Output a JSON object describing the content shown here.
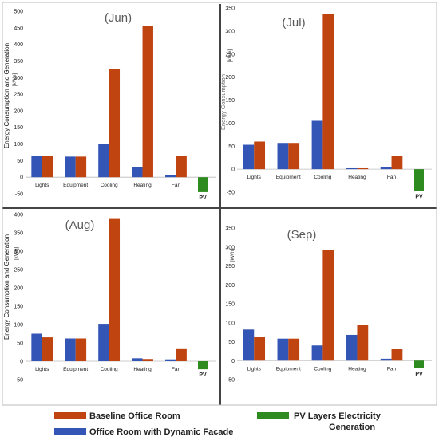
{
  "legend": {
    "baseline": "Baseline Office Room",
    "dynamic": "Office Room with Dynamic Facade",
    "pv_line1": "PV Layers Electricity",
    "pv_line2": "Generation"
  },
  "colors": {
    "baseline": "#c0440f",
    "dynamic": "#3355b5",
    "pv": "#2e8b1f"
  },
  "chart_data": [
    {
      "type": "bar",
      "title": "(Jun)",
      "ylabel": "Energy Consumption and Generation",
      "unit": "[kWh]",
      "categories": [
        "Lights",
        "Equipment",
        "Cooling",
        "Heating",
        "Fan"
      ],
      "pv_label": "PV",
      "ylim": [
        -50,
        500
      ],
      "yticks": [
        -50,
        0,
        50,
        100,
        150,
        200,
        250,
        300,
        350,
        400,
        450,
        500
      ],
      "series": [
        {
          "name": "Office Room with Dynamic Facade",
          "values": [
            63,
            62,
            100,
            30,
            6
          ]
        },
        {
          "name": "Baseline Office Room",
          "values": [
            65,
            62,
            325,
            455,
            65
          ]
        }
      ],
      "pv_value": -45
    },
    {
      "type": "bar",
      "title": "(Jul)",
      "ylabel": "Energy Consumption",
      "unit": "[kWh]",
      "categories": [
        "Lights",
        "Equipment",
        "Cooling",
        "Heating",
        "Fan"
      ],
      "pv_label": "PV",
      "ylim": [
        -50,
        350
      ],
      "yticks": [
        -50,
        0,
        50,
        100,
        150,
        200,
        250,
        300,
        350
      ],
      "series": [
        {
          "name": "Office Room with Dynamic Facade",
          "values": [
            53,
            57,
            105,
            2,
            5
          ]
        },
        {
          "name": "Baseline Office Room",
          "values": [
            60,
            57,
            337,
            2,
            29
          ]
        }
      ],
      "pv_value": -47
    },
    {
      "type": "bar",
      "title": "(Aug)",
      "ylabel": "Energy Consumption and Generation",
      "unit": "[kWh]",
      "categories": [
        "Lights",
        "Equipment",
        "Cooling",
        "Heating",
        "Fan"
      ],
      "pv_label": "PV",
      "ylim": [
        -50,
        400
      ],
      "yticks": [
        -50,
        0,
        50,
        100,
        150,
        200,
        250,
        300,
        350,
        400
      ],
      "series": [
        {
          "name": "Office Room with Dynamic Facade",
          "values": [
            75,
            62,
            102,
            8,
            5
          ]
        },
        {
          "name": "Baseline Office Room",
          "values": [
            65,
            62,
            390,
            6,
            33
          ]
        }
      ],
      "pv_value": -22
    },
    {
      "type": "bar",
      "title": "(Sep)",
      "ylabel": "",
      "unit": "[kWh]",
      "categories": [
        "Lights",
        "Equipment",
        "Cooling",
        "Heating",
        "Fan"
      ],
      "pv_label": "PV",
      "ylim": [
        -50,
        350
      ],
      "yticks": [
        -50,
        0,
        50,
        100,
        150,
        200,
        250,
        300,
        350
      ],
      "series": [
        {
          "name": "Office Room with Dynamic Facade",
          "values": [
            82,
            58,
            40,
            68,
            5
          ]
        },
        {
          "name": "Baseline Office Room",
          "values": [
            62,
            58,
            292,
            95,
            30
          ]
        }
      ],
      "pv_value": -20
    }
  ]
}
